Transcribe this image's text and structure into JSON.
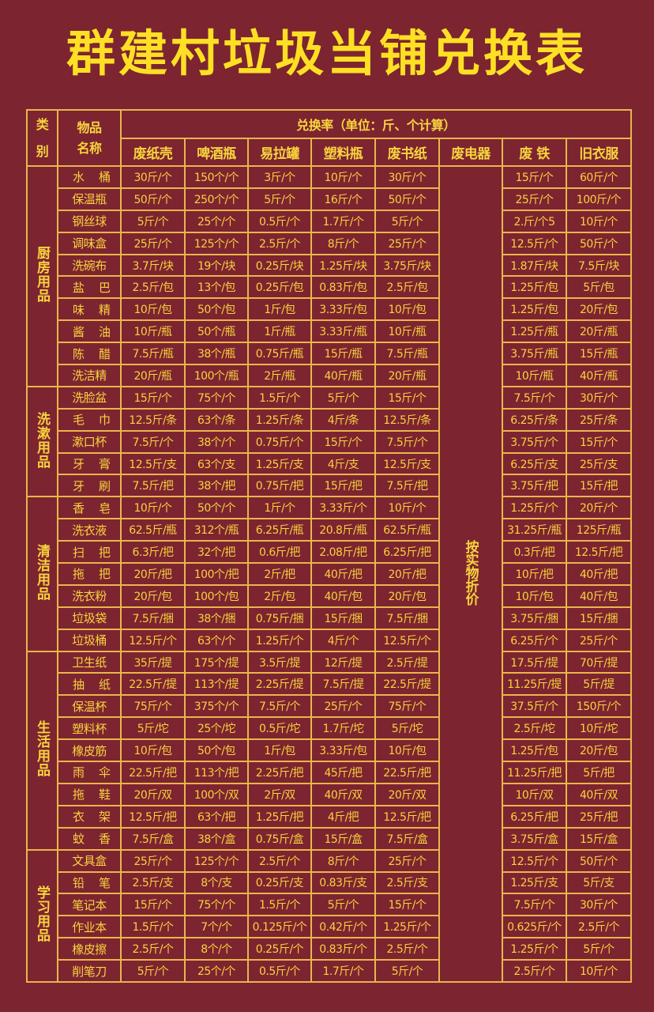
{
  "title": "群建村垃圾当铺兑换表",
  "header": {
    "category": "类别",
    "item_name": "物品名称",
    "rate": "兑换率（单位：斤、个计算）",
    "columns": [
      "废纸壳",
      "啤酒瓶",
      "易拉罐",
      "塑料瓶",
      "废书纸",
      "废电器",
      "废 铁",
      "旧衣服"
    ]
  },
  "electronics_note": "按实物折价",
  "colors": {
    "background": "#7d2431",
    "text": "#f8d43c",
    "grid": "#e9b64a"
  },
  "categories": [
    {
      "name": "厨房用品",
      "items": [
        {
          "name": "水桶",
          "values": [
            "30斤/个",
            "150个/个",
            "3斤/个",
            "10斤/个",
            "30斤/个",
            "15斤/个",
            "60斤/个"
          ]
        },
        {
          "name": "保温瓶",
          "values": [
            "50斤/个",
            "250个/个",
            "5斤/个",
            "16斤/个",
            "50斤/个",
            "25斤/个",
            "100斤/个"
          ]
        },
        {
          "name": "钢丝球",
          "values": [
            "5斤/个",
            "25个/个",
            "0.5斤/个",
            "1.7斤/个",
            "5斤/个",
            "2.斤/个5",
            "10斤/个"
          ]
        },
        {
          "name": "调味盒",
          "values": [
            "25斤/个",
            "125个/个",
            "2.5斤/个",
            "8斤/个",
            "25斤/个",
            "12.5斤/个",
            "50斤/个"
          ]
        },
        {
          "name": "洗碗布",
          "values": [
            "3.7斤/块",
            "19个/块",
            "0.25斤/块",
            "1.25斤/块",
            "3.75斤/块",
            "1.87斤/块",
            "7.5斤/块"
          ]
        },
        {
          "name": "盐巴",
          "values": [
            "2.5斤/包",
            "13个/包",
            "0.25斤/包",
            "0.83斤/包",
            "2.5斤/包",
            "1.25斤/包",
            "5斤/包"
          ]
        },
        {
          "name": "味精",
          "values": [
            "10斤/包",
            "50个/包",
            "1斤/包",
            "3.33斤/包",
            "10斤/包",
            "1.25斤/包",
            "20斤/包"
          ]
        },
        {
          "name": "酱油",
          "values": [
            "10斤/瓶",
            "50个/瓶",
            "1斤/瓶",
            "3.33斤/瓶",
            "10斤/瓶",
            "1.25斤/瓶",
            "20斤/瓶"
          ]
        },
        {
          "name": "陈醋",
          "values": [
            "7.5斤/瓶",
            "38个/瓶",
            "0.75斤/瓶",
            "15斤/瓶",
            "7.5斤/瓶",
            "3.75斤/瓶",
            "15斤/瓶"
          ]
        },
        {
          "name": "洗洁精",
          "values": [
            "20斤/瓶",
            "100个/瓶",
            "2斤/瓶",
            "40斤/瓶",
            "20斤/瓶",
            "10斤/瓶",
            "40斤/瓶"
          ]
        }
      ]
    },
    {
      "name": "洗漱用品",
      "items": [
        {
          "name": "洗脸盆",
          "values": [
            "15斤/个",
            "75个/个",
            "1.5斤/个",
            "5斤/个",
            "15斤/个",
            "7.5斤/个",
            "30斤/个"
          ]
        },
        {
          "name": "毛巾",
          "values": [
            "12.5斤/条",
            "63个/条",
            "1.25斤/条",
            "4斤/条",
            "12.5斤/条",
            "6.25斤/条",
            "25斤/条"
          ]
        },
        {
          "name": "漱口杯",
          "values": [
            "7.5斤/个",
            "38个/个",
            "0.75斤/个",
            "15斤/个",
            "7.5斤/个",
            "3.75斤/个",
            "15斤/个"
          ]
        },
        {
          "name": "牙膏",
          "values": [
            "12.5斤/支",
            "63个/支",
            "1.25斤/支",
            "4斤/支",
            "12.5斤/支",
            "6.25斤/支",
            "25斤/支"
          ]
        },
        {
          "name": "牙刷",
          "values": [
            "7.5斤/把",
            "38个/把",
            "0.75斤/把",
            "15斤/把",
            "7.5斤/把",
            "3.75斤/把",
            "15斤/把"
          ]
        }
      ]
    },
    {
      "name": "清洁用品",
      "items": [
        {
          "name": "香皂",
          "values": [
            "10斤/个",
            "50个/个",
            "1斤/个",
            "3.33斤/个",
            "10斤/个",
            "1.25斤/个",
            "20斤/个"
          ]
        },
        {
          "name": "洗衣液",
          "values": [
            "62.5斤/瓶",
            "312个/瓶",
            "6.25斤/瓶",
            "20.8斤/瓶",
            "62.5斤/瓶",
            "31.25斤/瓶",
            "125斤/瓶"
          ]
        },
        {
          "name": "扫把",
          "values": [
            "6.3斤/把",
            "32个/把",
            "0.6斤/把",
            "2.08斤/把",
            "6.25斤/把",
            "0.3斤/把",
            "12.5斤/把"
          ]
        },
        {
          "name": "拖把",
          "values": [
            "20斤/把",
            "100个/把",
            "2斤/把",
            "40斤/把",
            "20斤/把",
            "10斤/把",
            "40斤/把"
          ]
        },
        {
          "name": "洗衣粉",
          "values": [
            "20斤/包",
            "100个/包",
            "2斤/包",
            "40斤/包",
            "20斤/包",
            "10斤/包",
            "40斤/包"
          ]
        },
        {
          "name": "垃圾袋",
          "values": [
            "7.5斤/捆",
            "38个/捆",
            "0.75斤/捆",
            "15斤/捆",
            "7.5斤/捆",
            "3.75斤/捆",
            "15斤/捆"
          ]
        },
        {
          "name": "垃圾桶",
          "values": [
            "12.5斤/个",
            "63个/个",
            "1.25斤/个",
            "4斤/个",
            "12.5斤/个",
            "6.25斤/个",
            "25斤/个"
          ]
        }
      ]
    },
    {
      "name": "生活用品",
      "items": [
        {
          "name": "卫生纸",
          "values": [
            "35斤/提",
            "175个/提",
            "3.5斤/提",
            "12斤/提",
            "2.5斤/提",
            "17.5斤/提",
            "70斤/提"
          ]
        },
        {
          "name": "抽纸",
          "values": [
            "22.5斤/提",
            "113个/提",
            "2.25斤/提",
            "7.5斤/提",
            "22.5斤/提",
            "11.25斤/提",
            "5斤/提"
          ]
        },
        {
          "name": "保温杯",
          "values": [
            "75斤/个",
            "375个/个",
            "7.5斤/个",
            "25斤/个",
            "75斤/个",
            "37.5斤/个",
            "150斤/个"
          ]
        },
        {
          "name": "塑料杯",
          "values": [
            "5斤/坨",
            "25个/坨",
            "0.5斤/坨",
            "1.7斤/坨",
            "5斤/坨",
            "2.5斤/坨",
            "10斤/坨"
          ]
        },
        {
          "name": "橡皮筋",
          "values": [
            "10斤/包",
            "50个/包",
            "1斤/包",
            "3.33斤/包",
            "10斤/包",
            "1.25斤/包",
            "20斤/包"
          ]
        },
        {
          "name": "雨伞",
          "values": [
            "22.5斤/把",
            "113个/把",
            "2.25斤/把",
            "45斤/把",
            "22.5斤/把",
            "11.25斤/把",
            "5斤/把"
          ]
        },
        {
          "name": "拖鞋",
          "values": [
            "20斤/双",
            "100个/双",
            "2斤/双",
            "40斤/双",
            "20斤/双",
            "10斤/双",
            "40斤/双"
          ]
        },
        {
          "name": "衣架",
          "values": [
            "12.5斤/把",
            "63个/把",
            "1.25斤/把",
            "4斤/把",
            "12.5斤/把",
            "6.25斤/把",
            "25斤/把"
          ]
        },
        {
          "name": "蚊香",
          "values": [
            "7.5斤/盒",
            "38个/盒",
            "0.75斤/盒",
            "15斤/盒",
            "7.5斤/盒",
            "3.75斤/盒",
            "15斤/盒"
          ]
        }
      ]
    },
    {
      "name": "学习用品",
      "items": [
        {
          "name": "文具盒",
          "values": [
            "25斤/个",
            "125个/个",
            "2.5斤/个",
            "8斤/个",
            "25斤/个",
            "12.5斤/个",
            "50斤/个"
          ]
        },
        {
          "name": "铅笔",
          "values": [
            "2.5斤/支",
            "8个/支",
            "0.25斤/支",
            "0.83斤/支",
            "2.5斤/支",
            "1.25斤/支",
            "5斤/支"
          ]
        },
        {
          "name": "笔记本",
          "values": [
            "15斤/个",
            "75个/个",
            "1.5斤/个",
            "5斤/个",
            "15斤/个",
            "7.5斤/个",
            "30斤/个"
          ]
        },
        {
          "name": "作业本",
          "values": [
            "1.5斤/个",
            "7个/个",
            "0.125斤/个",
            "0.42斤/个",
            "1.25斤/个",
            "0.625斤/个",
            "2.5斤/个"
          ]
        },
        {
          "name": "橡皮擦",
          "values": [
            "2.5斤/个",
            "8个/个",
            "0.25斤/个",
            "0.83斤/个",
            "2.5斤/个",
            "1.25斤/个",
            "5斤/个"
          ]
        },
        {
          "name": "削笔刀",
          "values": [
            "5斤/个",
            "25个/个",
            "0.5斤/个",
            "1.7斤/个",
            "5斤/个",
            "2.5斤/个",
            "10斤/个"
          ]
        }
      ]
    }
  ]
}
